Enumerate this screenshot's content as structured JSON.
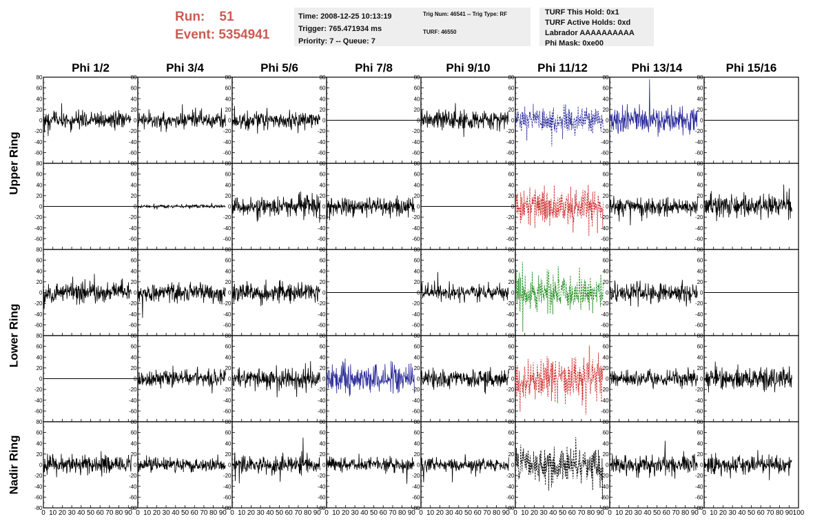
{
  "header": {
    "run_label": "Run:",
    "run_value": "51",
    "event_label": "Event:",
    "event_value": "5354941",
    "time": "Time: 2008-12-25 10:13:19",
    "trigger": "Trigger: 765.471934 ms",
    "priority": "Priority: 7 -- Queue: 7",
    "trig_num": "Trig Num: 46541 -- Trig Type: RF",
    "turf": "TURF: 46550",
    "turf_this_hold": "TURF This Hold: 0x1",
    "turf_active_holds": "TURF Active Holds: 0xd",
    "labrador": "Labrador AAAAAAAAAA",
    "phi_mask": "Phi Mask: 0xe00"
  },
  "colors": {
    "title_red": "#cc5a52",
    "trace_black": "#000000",
    "trace_blue": "#2b2b9a",
    "trace_red": "#cc2a2a",
    "trace_green": "#1a8a1a"
  },
  "chart_data": {
    "type": "line",
    "columns": [
      "Phi 1/2",
      "Phi 3/4",
      "Phi 5/6",
      "Phi 7/8",
      "Phi 9/10",
      "Phi 11/12",
      "Phi 13/14",
      "Phi 15/16"
    ],
    "ring_labels": [
      "Upper Ring",
      "Lower Ring",
      "Nadir Ring"
    ],
    "xlim": [
      0,
      100
    ],
    "ylim": [
      -80,
      80
    ],
    "x_ticks": [
      0,
      10,
      20,
      30,
      40,
      50,
      60,
      70,
      80,
      90,
      100
    ],
    "x_tick_labels": [
      "0",
      "10",
      "20",
      "30",
      "40",
      "50",
      "60",
      "70",
      "80",
      "90",
      "100"
    ],
    "y_ticks": [
      -80,
      -60,
      -40,
      -20,
      0,
      20,
      40,
      60,
      80
    ],
    "y_tick_labels": [
      "-80",
      "-60",
      "-40",
      "-20",
      "0",
      "20",
      "40",
      "60",
      "80"
    ],
    "rows": [
      [
        {
          "amplitude": 11,
          "color": "black",
          "style": "solid"
        },
        {
          "amplitude": 10,
          "color": "black",
          "style": "solid"
        },
        {
          "amplitude": 11,
          "color": "black",
          "style": "solid"
        },
        {
          "amplitude": 0,
          "color": "black",
          "style": "solid"
        },
        {
          "amplitude": 12,
          "color": "black",
          "style": "solid"
        },
        {
          "amplitude": 16,
          "color": "blue",
          "style": "dashed"
        },
        {
          "amplitude": 16,
          "color": "blue",
          "style": "solid"
        },
        {
          "amplitude": 0,
          "color": "black",
          "style": "solid"
        }
      ],
      [
        {
          "amplitude": 0,
          "color": "black",
          "style": "solid"
        },
        {
          "amplitude": 2,
          "color": "black",
          "style": "solid"
        },
        {
          "amplitude": 12,
          "color": "black",
          "style": "solid"
        },
        {
          "amplitude": 12,
          "color": "black",
          "style": "solid"
        },
        {
          "amplitude": 0,
          "color": "black",
          "style": "solid"
        },
        {
          "amplitude": 24,
          "color": "red",
          "style": "dashed"
        },
        {
          "amplitude": 11,
          "color": "black",
          "style": "solid"
        },
        {
          "amplitude": 15,
          "color": "black",
          "style": "solid"
        }
      ],
      [
        {
          "amplitude": 12,
          "color": "black",
          "style": "solid"
        },
        {
          "amplitude": 12,
          "color": "black",
          "style": "solid"
        },
        {
          "amplitude": 12,
          "color": "black",
          "style": "solid"
        },
        {
          "amplitude": 0,
          "color": "black",
          "style": "solid"
        },
        {
          "amplitude": 9,
          "color": "black",
          "style": "solid"
        },
        {
          "amplitude": 22,
          "color": "green",
          "style": "dashed"
        },
        {
          "amplitude": 13,
          "color": "black",
          "style": "solid"
        },
        {
          "amplitude": 0,
          "color": "black",
          "style": "solid"
        }
      ],
      [
        {
          "amplitude": 0,
          "color": "black",
          "style": "solid"
        },
        {
          "amplitude": 11,
          "color": "black",
          "style": "solid"
        },
        {
          "amplitude": 12,
          "color": "black",
          "style": "solid"
        },
        {
          "amplitude": 18,
          "color": "blue",
          "style": "solid"
        },
        {
          "amplitude": 11,
          "color": "black",
          "style": "solid"
        },
        {
          "amplitude": 26,
          "color": "red",
          "style": "dashed"
        },
        {
          "amplitude": 10,
          "color": "black",
          "style": "solid"
        },
        {
          "amplitude": 14,
          "color": "black",
          "style": "solid"
        }
      ],
      [
        {
          "amplitude": 11,
          "color": "black",
          "style": "solid"
        },
        {
          "amplitude": 8,
          "color": "black",
          "style": "solid"
        },
        {
          "amplitude": 11,
          "color": "black",
          "style": "solid"
        },
        {
          "amplitude": 9,
          "color": "black",
          "style": "solid"
        },
        {
          "amplitude": 8,
          "color": "black",
          "style": "solid"
        },
        {
          "amplitude": 22,
          "color": "black",
          "style": "dashed"
        },
        {
          "amplitude": 12,
          "color": "black",
          "style": "solid"
        },
        {
          "amplitude": 12,
          "color": "black",
          "style": "solid"
        }
      ]
    ]
  }
}
